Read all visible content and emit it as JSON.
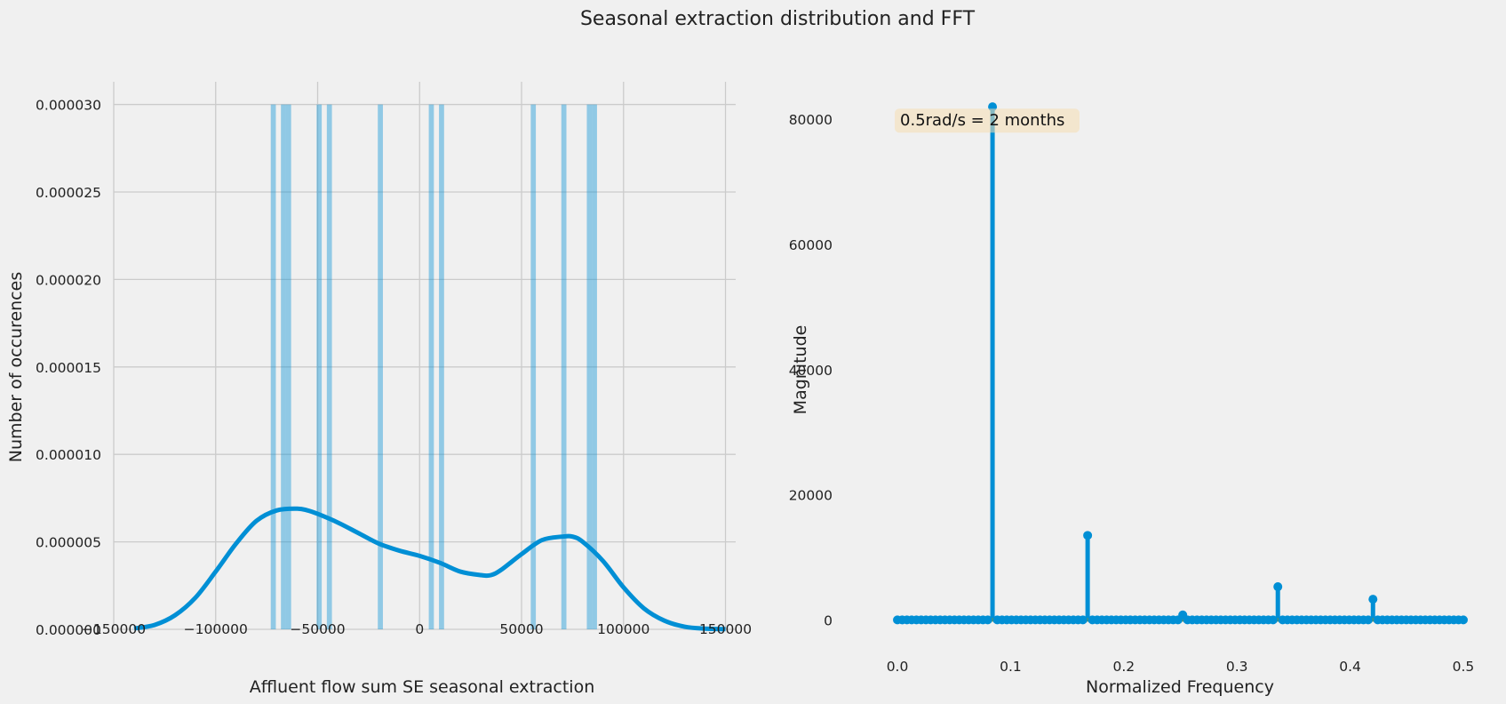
{
  "figure_title": "Seasonal extraction distribution and FFT",
  "colors": {
    "background": "#f0f0f0",
    "grid": "#cbcbcb",
    "primary": "#008fd5",
    "bar_fill": "#8fcae8",
    "baseline": "#6d904f",
    "annotation_box": "#f5deb3"
  },
  "chart_data": [
    {
      "type": "histogram",
      "title": "",
      "xlabel": "Affluent flow sum SE seasonal extraction",
      "ylabel": "Number of occurences",
      "xlim": [
        -150000,
        155000
      ],
      "ylim": [
        0,
        3.13e-05
      ],
      "grid": true,
      "xticks": [
        -150000,
        -100000,
        -50000,
        0,
        50000,
        100000,
        150000
      ],
      "xtick_labels": [
        "−150000",
        "−100000",
        "−50000",
        "0",
        "50000",
        "100000",
        "150000"
      ],
      "yticks": [
        0,
        5e-06,
        1e-05,
        1.5e-05,
        2e-05,
        2.5e-05,
        3e-05
      ],
      "ytick_labels": [
        "0.000000",
        "0.000005",
        "0.000010",
        "0.000015",
        "0.000020",
        "0.000025",
        "0.000030"
      ],
      "bins": [
        {
          "x0": -73000,
          "x1": -70500,
          "height": 3e-05
        },
        {
          "x0": -68000,
          "x1": -65500,
          "height": 3e-05
        },
        {
          "x0": -65500,
          "x1": -63000,
          "height": 3e-05
        },
        {
          "x0": -50500,
          "x1": -48000,
          "height": 3e-05
        },
        {
          "x0": -45500,
          "x1": -43000,
          "height": 3e-05
        },
        {
          "x0": -20500,
          "x1": -18000,
          "height": 3e-05
        },
        {
          "x0": 4500,
          "x1": 7000,
          "height": 3e-05
        },
        {
          "x0": 9500,
          "x1": 12000,
          "height": 3e-05
        },
        {
          "x0": 54500,
          "x1": 57000,
          "height": 3e-05
        },
        {
          "x0": 69500,
          "x1": 72000,
          "height": 3e-05
        },
        {
          "x0": 82000,
          "x1": 84500,
          "height": 3e-05
        },
        {
          "x0": 84500,
          "x1": 87000,
          "height": 3e-05
        }
      ],
      "kde": {
        "x": [
          -140000,
          -130000,
          -120000,
          -110000,
          -100000,
          -90000,
          -80000,
          -70000,
          -60000,
          -55000,
          -50000,
          -40000,
          -30000,
          -20000,
          -10000,
          0,
          10000,
          20000,
          30000,
          35000,
          40000,
          50000,
          60000,
          70000,
          75000,
          80000,
          90000,
          100000,
          110000,
          120000,
          130000,
          140000,
          150000
        ],
        "y": [
          5e-08,
          2.5e-07,
          8e-07,
          1.8e-06,
          3.3e-06,
          4.9e-06,
          6.2e-06,
          6.8e-06,
          6.9e-06,
          6.8e-06,
          6.6e-06,
          6.1e-06,
          5.5e-06,
          4.9e-06,
          4.5e-06,
          4.2e-06,
          3.8e-06,
          3.3e-06,
          3.1e-06,
          3.1e-06,
          3.4e-06,
          4.3e-06,
          5.1e-06,
          5.3e-06,
          5.3e-06,
          5e-06,
          3.9e-06,
          2.4e-06,
          1.2e-06,
          5e-07,
          1.5e-07,
          4e-08,
          1e-08
        ]
      }
    },
    {
      "type": "stem",
      "title": "",
      "xlabel": "Normalized Frequency",
      "ylabel": "Magnitude",
      "xlim": [
        -0.022,
        0.522
      ],
      "ylim": [
        -3500,
        86000
      ],
      "grid": false,
      "xticks": [
        0.0,
        0.1,
        0.2,
        0.3,
        0.4,
        0.5
      ],
      "xtick_labels": [
        "0.0",
        "0.1",
        "0.2",
        "0.3",
        "0.4",
        "0.5"
      ],
      "yticks": [
        0,
        20000,
        40000,
        60000,
        80000
      ],
      "ytick_labels": [
        "0",
        "20000",
        "40000",
        "60000",
        "80000"
      ],
      "num_points": 120,
      "x_max": 0.5,
      "peaks": [
        {
          "x": 0.084,
          "y": 82000
        },
        {
          "x": 0.1681,
          "y": 13500
        },
        {
          "x": 0.2521,
          "y": 800
        },
        {
          "x": 0.3361,
          "y": 5300
        },
        {
          "x": 0.4202,
          "y": 3300
        }
      ],
      "annotation": {
        "text": "0.5rad/s = 2 months",
        "x": 0.0,
        "y": 80000
      }
    }
  ]
}
